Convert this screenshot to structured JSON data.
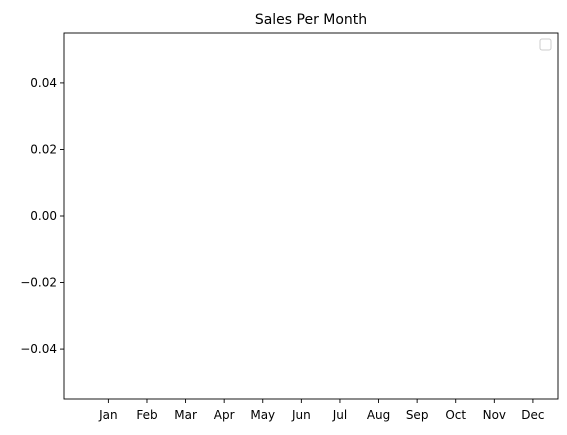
{
  "chart_data": {
    "type": "bar",
    "title": "Sales Per Month",
    "xlabel": "",
    "ylabel": "",
    "categories": [
      "Jan",
      "Feb",
      "Mar",
      "Apr",
      "May",
      "Jun",
      "Jul",
      "Aug",
      "Sep",
      "Oct",
      "Nov",
      "Dec"
    ],
    "series": [],
    "ylim": [
      -0.055,
      0.055
    ],
    "yticks": [
      "0.04",
      "0.02",
      "0.00",
      "−0.02",
      "−0.04"
    ],
    "ytick_values": [
      0.04,
      0.02,
      0.0,
      -0.02,
      -0.04
    ],
    "grid": false,
    "legend": {
      "placement": "top-right",
      "entries": []
    }
  }
}
